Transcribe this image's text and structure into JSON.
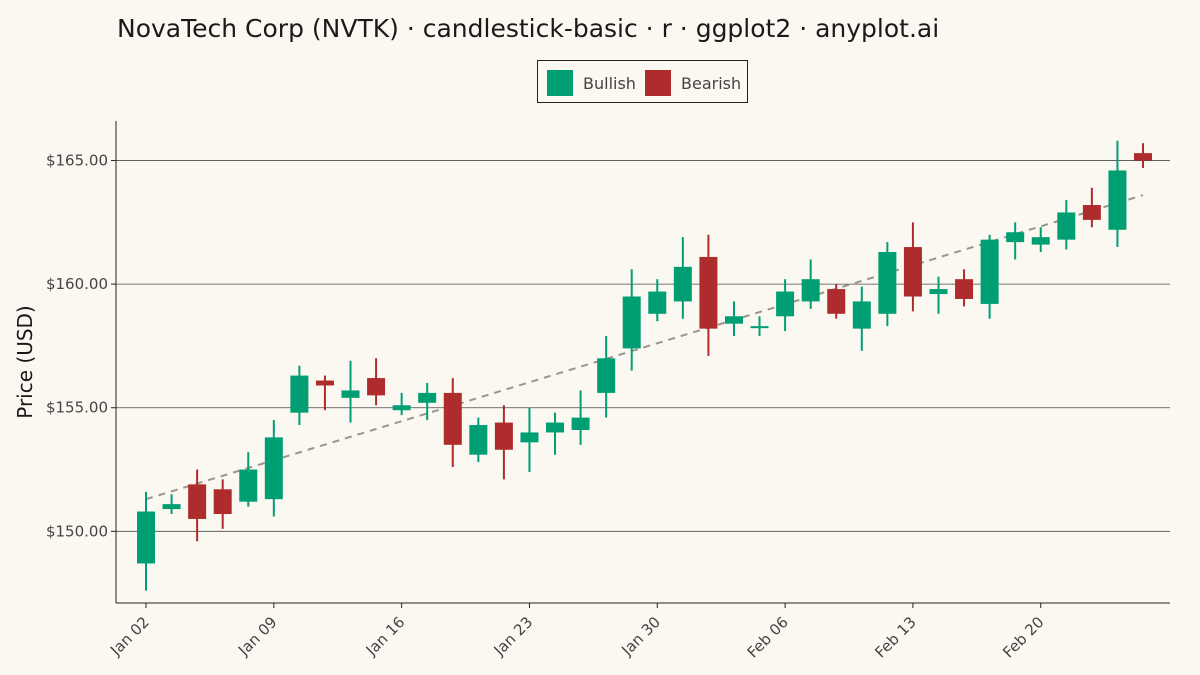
{
  "title": "NovaTech Corp (NVTK) · candlestick-basic · r · ggplot2 · anyplot.ai",
  "colors": {
    "background": "#FAF8F1",
    "bullish": "#009E73",
    "bearish": "#AE2C2C",
    "trend": "#9A968E",
    "grid": "#4a4a4a"
  },
  "legend": {
    "position": "top",
    "items": [
      {
        "label": "Bullish",
        "color": "#009E73"
      },
      {
        "label": "Bearish",
        "color": "#AE2C2C"
      }
    ]
  },
  "chart_data": {
    "type": "candlestick",
    "ylabel": "Price (USD)",
    "xlabel": "",
    "ylim": [
      147.1,
      166.6
    ],
    "y_ticks": [
      150,
      155,
      160,
      165
    ],
    "y_tick_labels": [
      "$150.00",
      "$155.00",
      "$160.00",
      "$165.00"
    ],
    "x_tick_labels": [
      "Jan 02",
      "Jan 09",
      "Jan 16",
      "Jan 23",
      "Jan 30",
      "Feb 06",
      "Feb 13",
      "Feb 20"
    ],
    "x_tick_indices": [
      0,
      5,
      10,
      15,
      20,
      25,
      30,
      35
    ],
    "grid": "horizontal major",
    "trend_line": {
      "style": "dashed",
      "start": 151.3,
      "end": 163.6
    },
    "candles": [
      {
        "date": "Jan 02",
        "open": 148.7,
        "high": 151.6,
        "low": 147.6,
        "close": 150.8
      },
      {
        "date": "Jan 03",
        "open": 150.9,
        "high": 151.5,
        "low": 150.7,
        "close": 151.1
      },
      {
        "date": "Jan 04",
        "open": 151.9,
        "high": 152.5,
        "low": 149.6,
        "close": 150.5
      },
      {
        "date": "Jan 05",
        "open": 151.7,
        "high": 152.1,
        "low": 150.1,
        "close": 150.7
      },
      {
        "date": "Jan 08",
        "open": 151.2,
        "high": 153.2,
        "low": 151.0,
        "close": 152.5
      },
      {
        "date": "Jan 09",
        "open": 151.3,
        "high": 154.5,
        "low": 150.6,
        "close": 153.8
      },
      {
        "date": "Jan 10",
        "open": 154.8,
        "high": 156.7,
        "low": 154.3,
        "close": 156.3
      },
      {
        "date": "Jan 11",
        "open": 156.1,
        "high": 156.3,
        "low": 154.9,
        "close": 155.9
      },
      {
        "date": "Jan 12",
        "open": 155.4,
        "high": 156.9,
        "low": 154.4,
        "close": 155.7
      },
      {
        "date": "Jan 15",
        "open": 156.2,
        "high": 157.0,
        "low": 155.1,
        "close": 155.5
      },
      {
        "date": "Jan 16",
        "open": 154.9,
        "high": 155.6,
        "low": 154.7,
        "close": 155.1
      },
      {
        "date": "Jan 17",
        "open": 155.2,
        "high": 156.0,
        "low": 154.5,
        "close": 155.6
      },
      {
        "date": "Jan 18",
        "open": 155.6,
        "high": 156.2,
        "low": 152.6,
        "close": 153.5
      },
      {
        "date": "Jan 19",
        "open": 153.1,
        "high": 154.6,
        "low": 152.8,
        "close": 154.3
      },
      {
        "date": "Jan 22",
        "open": 154.4,
        "high": 155.1,
        "low": 152.1,
        "close": 153.3
      },
      {
        "date": "Jan 23",
        "open": 153.6,
        "high": 155.0,
        "low": 152.4,
        "close": 154.0
      },
      {
        "date": "Jan 24",
        "open": 154.0,
        "high": 154.8,
        "low": 153.1,
        "close": 154.4
      },
      {
        "date": "Jan 25",
        "open": 154.1,
        "high": 155.7,
        "low": 153.5,
        "close": 154.6
      },
      {
        "date": "Jan 26",
        "open": 155.6,
        "high": 157.9,
        "low": 154.6,
        "close": 157.0
      },
      {
        "date": "Jan 29",
        "open": 157.4,
        "high": 160.6,
        "low": 156.5,
        "close": 159.5
      },
      {
        "date": "Jan 30",
        "open": 158.8,
        "high": 160.2,
        "low": 158.5,
        "close": 159.7
      },
      {
        "date": "Jan 31",
        "open": 159.3,
        "high": 161.9,
        "low": 158.6,
        "close": 160.7
      },
      {
        "date": "Feb 01",
        "open": 161.1,
        "high": 162.0,
        "low": 157.1,
        "close": 158.2
      },
      {
        "date": "Feb 02",
        "open": 158.4,
        "high": 159.3,
        "low": 157.9,
        "close": 158.7
      },
      {
        "date": "Feb 05",
        "open": 158.3,
        "high": 158.7,
        "low": 157.9,
        "close": 158.3
      },
      {
        "date": "Feb 06",
        "open": 158.7,
        "high": 160.2,
        "low": 158.1,
        "close": 159.7
      },
      {
        "date": "Feb 07",
        "open": 159.3,
        "high": 161.0,
        "low": 159.0,
        "close": 160.2
      },
      {
        "date": "Feb 08",
        "open": 159.8,
        "high": 160.0,
        "low": 158.6,
        "close": 158.8
      },
      {
        "date": "Feb 09",
        "open": 158.2,
        "high": 159.9,
        "low": 157.3,
        "close": 159.3
      },
      {
        "date": "Feb 12",
        "open": 158.8,
        "high": 161.7,
        "low": 158.3,
        "close": 161.3
      },
      {
        "date": "Feb 13",
        "open": 161.5,
        "high": 162.5,
        "low": 158.9,
        "close": 159.5
      },
      {
        "date": "Feb 14",
        "open": 159.6,
        "high": 160.3,
        "low": 158.8,
        "close": 159.8
      },
      {
        "date": "Feb 15",
        "open": 160.2,
        "high": 160.6,
        "low": 159.1,
        "close": 159.4
      },
      {
        "date": "Feb 16",
        "open": 159.2,
        "high": 162.0,
        "low": 158.6,
        "close": 161.8
      },
      {
        "date": "Feb 19",
        "open": 161.7,
        "high": 162.5,
        "low": 161.0,
        "close": 162.1
      },
      {
        "date": "Feb 20",
        "open": 161.6,
        "high": 162.3,
        "low": 161.3,
        "close": 161.9
      },
      {
        "date": "Feb 21",
        "open": 161.8,
        "high": 163.4,
        "low": 161.4,
        "close": 162.9
      },
      {
        "date": "Feb 22",
        "open": 163.2,
        "high": 163.9,
        "low": 162.3,
        "close": 162.6
      },
      {
        "date": "Feb 23",
        "open": 162.2,
        "high": 165.8,
        "low": 161.5,
        "close": 164.6
      },
      {
        "date": "Feb 26",
        "open": 165.3,
        "high": 165.7,
        "low": 164.7,
        "close": 165.0
      }
    ]
  }
}
